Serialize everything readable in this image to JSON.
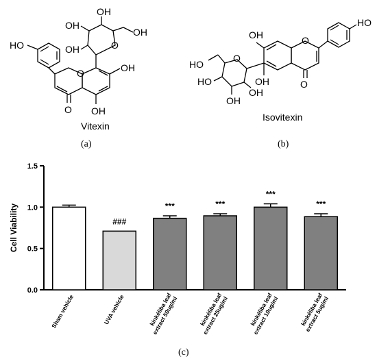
{
  "panels": [
    {
      "label": "(a)",
      "molecule": "Vitexin"
    },
    {
      "label": "(b)",
      "molecule": "Isovitexin"
    },
    {
      "label": "(c)"
    }
  ],
  "vitexin_atoms": [
    "OH",
    "OH",
    "OH",
    "OH",
    "HO",
    "OH",
    "O",
    "O",
    "O",
    "OH"
  ],
  "isovitexin_atoms": [
    "OH",
    "HO",
    "O",
    "HO",
    "O",
    "HO",
    "OH",
    "OH",
    "OH",
    "O"
  ],
  "chart_data": {
    "type": "bar",
    "ylabel": "Cell Viability",
    "ylim": [
      0,
      1.5
    ],
    "yticks": [
      "0.0",
      "0.5",
      "1.0",
      "1.5"
    ],
    "categories": [
      [
        "Sham vehicle"
      ],
      [
        "UVA vehicle"
      ],
      [
        "kinkéliba leaf",
        "extract  50ug/ml"
      ],
      [
        "kinkéliba leaf",
        "extract  25ug/ml"
      ],
      [
        "kinkéliba leaf",
        "extract  10ug/ml"
      ],
      [
        "kinkéliba leaf",
        "extract  5ug/ml"
      ]
    ],
    "values": [
      1.0,
      0.71,
      0.865,
      0.895,
      1.0,
      0.885
    ],
    "errors": [
      0.025,
      0.0,
      0.03,
      0.025,
      0.04,
      0.035
    ],
    "annotations": [
      "",
      "###",
      "***",
      "***",
      "***",
      "***"
    ],
    "bar_colors": [
      "#ffffff",
      "#d9d9d9",
      "#808080",
      "#808080",
      "#808080",
      "#808080"
    ],
    "grid": false
  }
}
